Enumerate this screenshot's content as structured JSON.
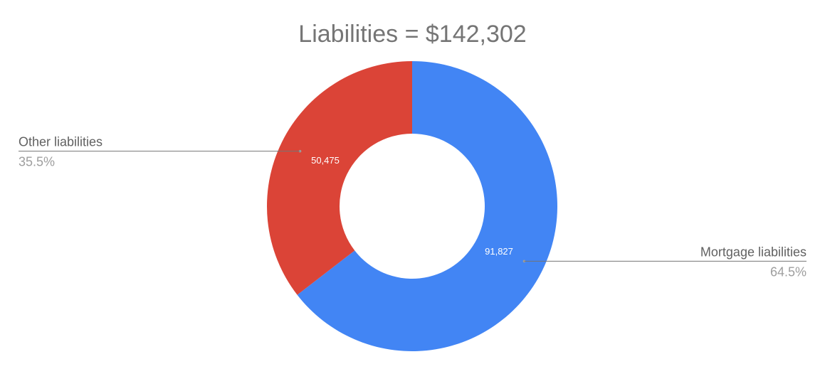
{
  "chart_data": {
    "type": "pie",
    "donut": true,
    "title": "Liabilities = $142,302",
    "slices": [
      {
        "label": "Mortgage liabilities",
        "value": 91827,
        "value_label": "91,827",
        "percent_label": "64.5%",
        "color": "#4285f4"
      },
      {
        "label": "Other liabilities",
        "value": 50475,
        "value_label": "50,475",
        "percent_label": "35.5%",
        "color": "#db4437"
      }
    ],
    "start_angle": "12 o'clock, clockwise",
    "legend": "callout labels outside slices"
  }
}
